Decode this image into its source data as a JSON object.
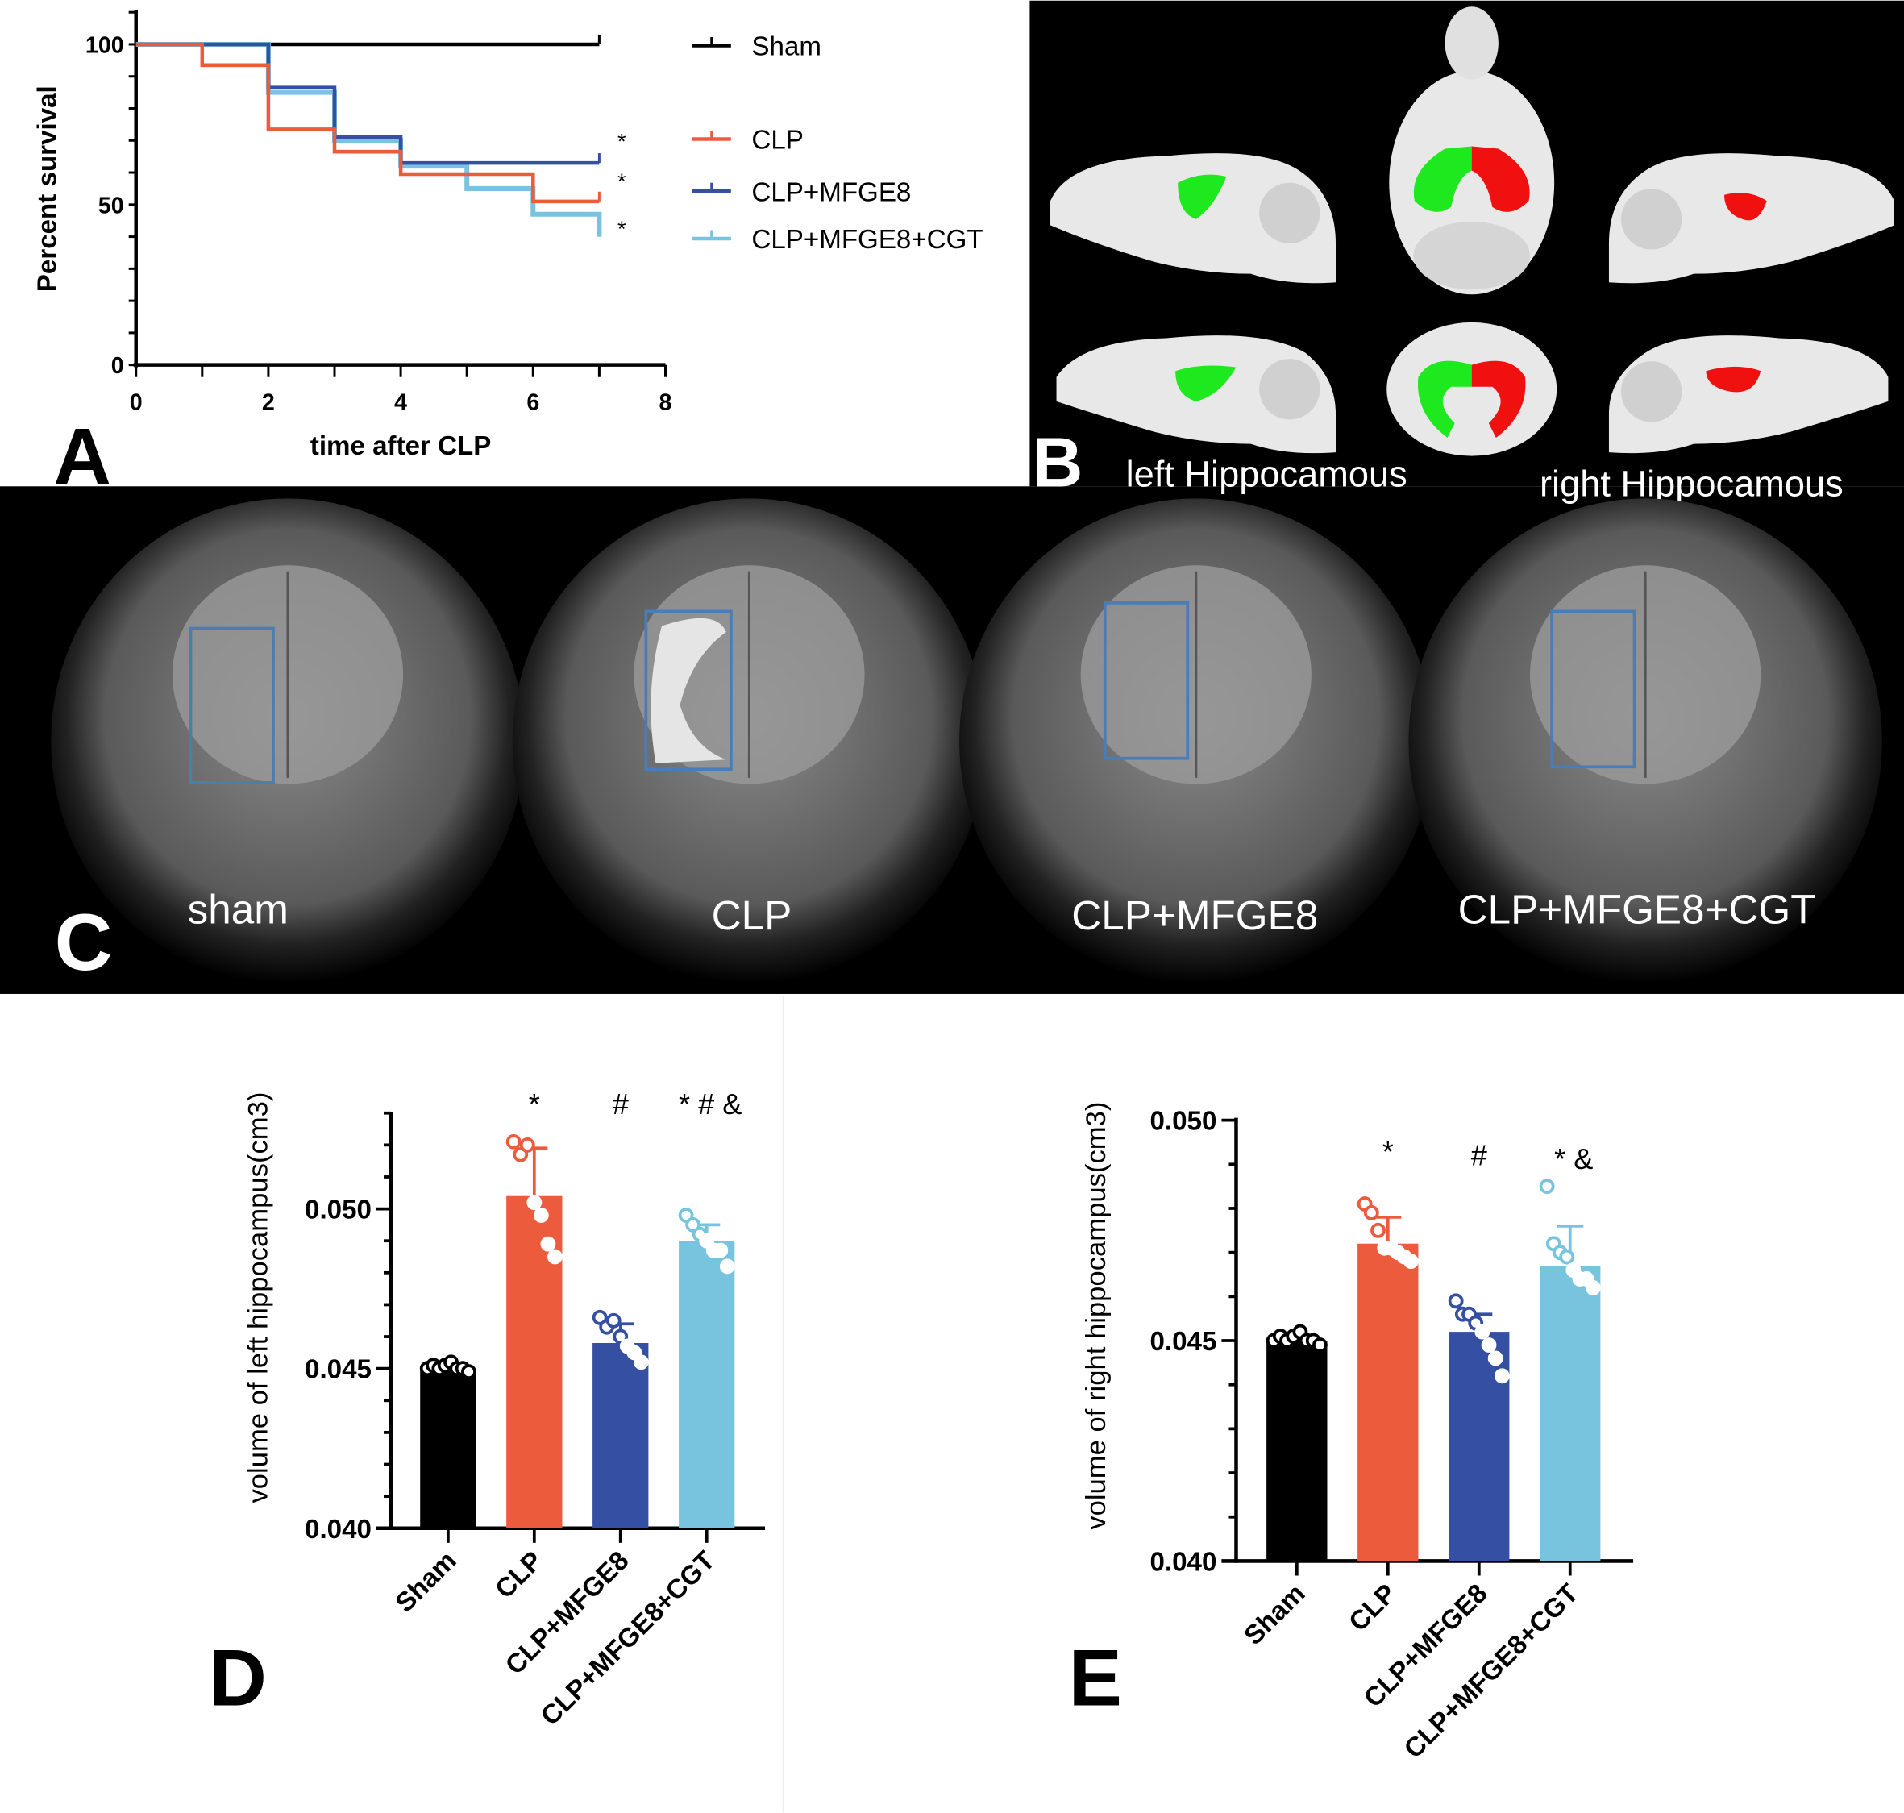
{
  "colors": {
    "sham": "#000000",
    "clp": "#EC5B3B",
    "mfge8": "#3550A3",
    "cgt": "#78C4DF",
    "green": "#1EE81E",
    "red": "#F01010"
  },
  "panel_labels": {
    "a": "A",
    "b": "B",
    "c": "C",
    "d": "D",
    "e": "E"
  },
  "panel_b": {
    "left_label": "left Hippocamous",
    "right_label": "right Hippocamous"
  },
  "panel_c": {
    "labels": [
      "sham",
      "CLP",
      "CLP+MFGE8",
      "CLP+MFGE8+CGT"
    ]
  },
  "chart_data": [
    {
      "type": "line",
      "subtype": "kaplan-meier step",
      "xlabel": "time after CLP",
      "ylabel": "Percent survival",
      "xlim": [
        0,
        8
      ],
      "ylim": [
        0,
        100
      ],
      "xticks": [
        "0",
        "2",
        "4",
        "6",
        "8"
      ],
      "yticks": [
        "0",
        "50",
        "100"
      ],
      "legend_position": "right",
      "series": [
        {
          "name": "Sham",
          "color": "#000000",
          "steps": [
            [
              0,
              100
            ],
            [
              7,
              100
            ]
          ],
          "annotation": ""
        },
        {
          "name": "CLP",
          "color": "#EC5B3B",
          "steps": [
            [
              0,
              100
            ],
            [
              1,
              93.5
            ],
            [
              2,
              73.5
            ],
            [
              3,
              66.5
            ],
            [
              4,
              59.5
            ],
            [
              6,
              51
            ],
            [
              7,
              51
            ]
          ],
          "annotation": "*"
        },
        {
          "name": "CLP+MFGE8",
          "color": "#3550A3",
          "steps": [
            [
              0,
              100
            ],
            [
              2,
              86.5
            ],
            [
              3,
              71
            ],
            [
              4,
              63
            ],
            [
              7,
              63
            ]
          ],
          "annotation": "*"
        },
        {
          "name": "CLP+MFGE8+CGT",
          "color": "#78C4DF",
          "steps": [
            [
              0,
              100
            ],
            [
              2,
              85
            ],
            [
              3,
              70
            ],
            [
              4,
              62
            ],
            [
              5,
              55
            ],
            [
              6,
              47
            ],
            [
              7,
              40
            ]
          ],
          "annotation": "*"
        }
      ]
    },
    {
      "type": "bar",
      "ylabel": "volume of left hippocampus(cm3)",
      "ylim": [
        0.04,
        0.053
      ],
      "yticks": [
        "0.040",
        "0.045",
        "0.050"
      ],
      "categories": [
        "Sham",
        "CLP",
        "CLP+MFGE8",
        "CLP+MFGE8+CGT"
      ],
      "values": [
        0.045,
        0.0504,
        0.0458,
        0.049
      ],
      "error_upper": [
        0.0451,
        0.0519,
        0.0464,
        0.0495
      ],
      "points": [
        [
          0.045,
          0.0451,
          0.045,
          0.0451,
          0.0452,
          0.045,
          0.045,
          0.0449
        ],
        [
          0.0521,
          0.0517,
          0.052,
          0.0502,
          0.0498,
          0.0489,
          0.0485
        ],
        [
          0.0466,
          0.0463,
          0.0465,
          0.046,
          0.0457,
          0.0455,
          0.0452
        ],
        [
          0.0498,
          0.0495,
          0.0492,
          0.049,
          0.0487,
          0.0487,
          0.0482
        ]
      ],
      "annotations": [
        "",
        "*",
        "#",
        "* # &"
      ]
    },
    {
      "type": "bar",
      "ylabel": "volume of right hippocampus(cm3)",
      "ylim": [
        0.04,
        0.05
      ],
      "yticks": [
        "0.040",
        "0.045",
        "0.050"
      ],
      "categories": [
        "Sham",
        "CLP",
        "CLP+MFGE8",
        "CLP+MFGE8+CGT"
      ],
      "values": [
        0.045,
        0.0472,
        0.0452,
        0.0467
      ],
      "error_upper": [
        0.0451,
        0.0478,
        0.0456,
        0.0476
      ],
      "points": [
        [
          0.045,
          0.0451,
          0.045,
          0.0451,
          0.0452,
          0.045,
          0.045,
          0.0449
        ],
        [
          0.0481,
          0.0479,
          0.0475,
          0.0471,
          0.0471,
          0.047,
          0.0469,
          0.0468
        ],
        [
          0.0459,
          0.0456,
          0.0456,
          0.0454,
          0.0452,
          0.0449,
          0.0446,
          0.0442
        ],
        [
          0.0485,
          0.0472,
          0.047,
          0.0469,
          0.0466,
          0.0464,
          0.0464,
          0.0462
        ]
      ],
      "annotations": [
        "",
        "*",
        "#",
        "* &"
      ]
    }
  ]
}
